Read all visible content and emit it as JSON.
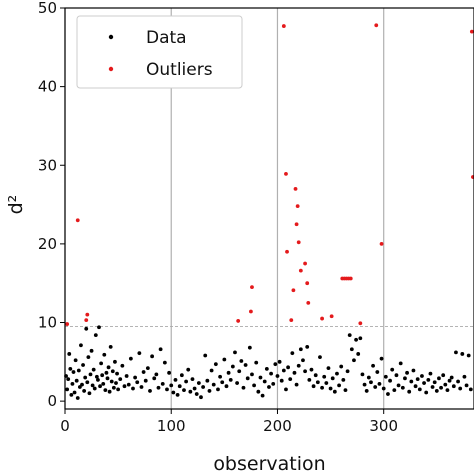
{
  "chart_data": {
    "type": "scatter",
    "xlabel": "observation",
    "ylabel": "d²",
    "xlim": [
      0,
      385
    ],
    "ylim": [
      -1,
      50
    ],
    "x_ticks": [
      0,
      100,
      200,
      300
    ],
    "y_ticks": [
      0,
      10,
      20,
      30,
      40,
      50
    ],
    "grid": "vertical",
    "threshold": 9.5,
    "legend_placement": "top-left",
    "series": [
      {
        "name": "Data",
        "color": "#000000",
        "points": [
          [
            1,
            3.2
          ],
          [
            2,
            1.5
          ],
          [
            3,
            2.8
          ],
          [
            4,
            6.0
          ],
          [
            5,
            4.1
          ],
          [
            6,
            0.8
          ],
          [
            7,
            2.2
          ],
          [
            8,
            3.7
          ],
          [
            9,
            1.1
          ],
          [
            10,
            5.2
          ],
          [
            11,
            2.6
          ],
          [
            12,
            0.4
          ],
          [
            13,
            3.9
          ],
          [
            14,
            1.8
          ],
          [
            15,
            7.1
          ],
          [
            16,
            2.1
          ],
          [
            17,
            4.6
          ],
          [
            18,
            1.3
          ],
          [
            19,
            3.0
          ],
          [
            20,
            9.2
          ],
          [
            21,
            2.4
          ],
          [
            22,
            5.6
          ],
          [
            23,
            1.0
          ],
          [
            24,
            3.4
          ],
          [
            25,
            6.4
          ],
          [
            26,
            2.0
          ],
          [
            27,
            4.0
          ],
          [
            28,
            1.6
          ],
          [
            29,
            8.4
          ],
          [
            30,
            3.1
          ],
          [
            31,
            2.7
          ],
          [
            32,
            9.4
          ],
          [
            33,
            1.9
          ],
          [
            34,
            4.8
          ],
          [
            35,
            3.3
          ],
          [
            36,
            2.2
          ],
          [
            37,
            5.9
          ],
          [
            38,
            1.4
          ],
          [
            39,
            3.6
          ],
          [
            40,
            2.9
          ],
          [
            41,
            4.3
          ],
          [
            42,
            1.2
          ],
          [
            43,
            6.9
          ],
          [
            44,
            2.5
          ],
          [
            45,
            3.8
          ],
          [
            46,
            1.7
          ],
          [
            47,
            5.0
          ],
          [
            48,
            2.3
          ],
          [
            49,
            3.5
          ],
          [
            50,
            1.5
          ],
          [
            52,
            2.8
          ],
          [
            54,
            4.5
          ],
          [
            56,
            1.9
          ],
          [
            58,
            3.2
          ],
          [
            60,
            2.1
          ],
          [
            62,
            5.4
          ],
          [
            64,
            1.6
          ],
          [
            66,
            3.0
          ],
          [
            68,
            2.4
          ],
          [
            70,
            6.1
          ],
          [
            72,
            1.8
          ],
          [
            74,
            3.7
          ],
          [
            76,
            2.6
          ],
          [
            78,
            4.2
          ],
          [
            80,
            1.3
          ],
          [
            82,
            5.7
          ],
          [
            84,
            2.9
          ],
          [
            86,
            3.4
          ],
          [
            88,
            1.7
          ],
          [
            90,
            6.6
          ],
          [
            92,
            2.2
          ],
          [
            94,
            4.9
          ],
          [
            96,
            1.5
          ],
          [
            98,
            3.6
          ],
          [
            100,
            2.0
          ],
          [
            102,
            1.1
          ],
          [
            104,
            2.7
          ],
          [
            106,
            0.8
          ],
          [
            108,
            1.9
          ],
          [
            110,
            3.3
          ],
          [
            112,
            1.4
          ],
          [
            114,
            2.5
          ],
          [
            116,
            4.0
          ],
          [
            118,
            1.2
          ],
          [
            120,
            2.8
          ],
          [
            122,
            1.6
          ],
          [
            124,
            0.9
          ],
          [
            126,
            2.3
          ],
          [
            128,
            0.5
          ],
          [
            130,
            1.8
          ],
          [
            132,
            5.8
          ],
          [
            134,
            2.6
          ],
          [
            136,
            1.3
          ],
          [
            138,
            3.9
          ],
          [
            140,
            2.1
          ],
          [
            142,
            4.7
          ],
          [
            144,
            1.5
          ],
          [
            146,
            3.1
          ],
          [
            148,
            2.4
          ],
          [
            150,
            5.3
          ],
          [
            152,
            1.9
          ],
          [
            154,
            3.6
          ],
          [
            156,
            2.7
          ],
          [
            158,
            4.4
          ],
          [
            160,
            6.2
          ],
          [
            162,
            2.3
          ],
          [
            164,
            3.8
          ],
          [
            166,
            5.1
          ],
          [
            168,
            1.7
          ],
          [
            170,
            4.6
          ],
          [
            172,
            2.9
          ],
          [
            174,
            6.8
          ],
          [
            176,
            3.4
          ],
          [
            178,
            2.0
          ],
          [
            180,
            4.9
          ],
          [
            182,
            1.2
          ],
          [
            184,
            3.0
          ],
          [
            186,
            0.7
          ],
          [
            188,
            2.5
          ],
          [
            190,
            4.1
          ],
          [
            192,
            1.8
          ],
          [
            194,
            3.5
          ],
          [
            196,
            2.2
          ],
          [
            198,
            4.7
          ],
          [
            200,
            3.2
          ],
          [
            202,
            5.0
          ],
          [
            204,
            2.6
          ],
          [
            206,
            3.9
          ],
          [
            208,
            1.5
          ],
          [
            210,
            4.3
          ],
          [
            212,
            2.8
          ],
          [
            214,
            6.1
          ],
          [
            216,
            3.6
          ],
          [
            218,
            2.1
          ],
          [
            220,
            4.5
          ],
          [
            222,
            6.6
          ],
          [
            224,
            5.2
          ],
          [
            226,
            3.8
          ],
          [
            228,
            6.9
          ],
          [
            230,
            2.7
          ],
          [
            232,
            4.0
          ],
          [
            234,
            1.9
          ],
          [
            236,
            3.3
          ],
          [
            238,
            2.4
          ],
          [
            240,
            5.6
          ],
          [
            242,
            1.7
          ],
          [
            244,
            3.1
          ],
          [
            246,
            2.3
          ],
          [
            248,
            4.2
          ],
          [
            250,
            1.6
          ],
          [
            252,
            2.9
          ],
          [
            254,
            1.2
          ],
          [
            256,
            3.5
          ],
          [
            258,
            2.0
          ],
          [
            260,
            4.4
          ],
          [
            262,
            2.7
          ],
          [
            264,
            1.4
          ],
          [
            266,
            3.8
          ],
          [
            268,
            8.4
          ],
          [
            270,
            6.6
          ],
          [
            272,
            5.2
          ],
          [
            274,
            7.8
          ],
          [
            276,
            6.0
          ],
          [
            278,
            8.0
          ],
          [
            280,
            3.4
          ],
          [
            282,
            2.1
          ],
          [
            284,
            1.3
          ],
          [
            286,
            3.0
          ],
          [
            288,
            2.4
          ],
          [
            290,
            4.5
          ],
          [
            292,
            1.8
          ],
          [
            294,
            3.7
          ],
          [
            296,
            2.2
          ],
          [
            298,
            5.4
          ],
          [
            300,
            1.6
          ],
          [
            302,
            3.1
          ],
          [
            304,
            0.9
          ],
          [
            306,
            2.6
          ],
          [
            308,
            4.0
          ],
          [
            310,
            1.4
          ],
          [
            312,
            3.3
          ],
          [
            314,
            2.0
          ],
          [
            316,
            4.8
          ],
          [
            318,
            1.7
          ],
          [
            320,
            2.9
          ],
          [
            322,
            3.6
          ],
          [
            324,
            1.2
          ],
          [
            326,
            2.5
          ],
          [
            328,
            3.9
          ],
          [
            330,
            1.9
          ],
          [
            332,
            2.8
          ],
          [
            334,
            1.5
          ],
          [
            336,
            3.2
          ],
          [
            338,
            2.3
          ],
          [
            340,
            1.1
          ],
          [
            342,
            2.7
          ],
          [
            344,
            3.5
          ],
          [
            346,
            1.8
          ],
          [
            348,
            2.4
          ],
          [
            350,
            1.3
          ],
          [
            352,
            2.9
          ],
          [
            354,
            1.7
          ],
          [
            356,
            3.3
          ],
          [
            358,
            2.1
          ],
          [
            360,
            1.4
          ],
          [
            362,
            2.6
          ],
          [
            364,
            3.0
          ],
          [
            366,
            1.9
          ],
          [
            368,
            6.2
          ],
          [
            370,
            2.5
          ],
          [
            372,
            1.6
          ],
          [
            374,
            6.0
          ],
          [
            376,
            3.1
          ],
          [
            378,
            2.0
          ],
          [
            380,
            5.8
          ],
          [
            382,
            1.5
          ]
        ]
      },
      {
        "name": "Outliers",
        "color": "#e41a1c",
        "points": [
          [
            2,
            9.8
          ],
          [
            12,
            23.0
          ],
          [
            20,
            10.3
          ],
          [
            21,
            11.0
          ],
          [
            163,
            10.2
          ],
          [
            175,
            11.4
          ],
          [
            176,
            14.5
          ],
          [
            206,
            47.7
          ],
          [
            208,
            28.9
          ],
          [
            209,
            19.0
          ],
          [
            213,
            10.3
          ],
          [
            215,
            14.1
          ],
          [
            217,
            27.0
          ],
          [
            218,
            22.5
          ],
          [
            219,
            24.8
          ],
          [
            220,
            20.2
          ],
          [
            222,
            16.6
          ],
          [
            226,
            17.5
          ],
          [
            228,
            15.0
          ],
          [
            229,
            12.5
          ],
          [
            242,
            10.5
          ],
          [
            251,
            10.8
          ],
          [
            261,
            15.6
          ],
          [
            263,
            15.6
          ],
          [
            265,
            15.6
          ],
          [
            267,
            15.6
          ],
          [
            269,
            15.6
          ],
          [
            278,
            9.9
          ],
          [
            293,
            47.8
          ],
          [
            298,
            20.0
          ],
          [
            383,
            47.0
          ],
          [
            384,
            28.5
          ]
        ]
      }
    ]
  }
}
